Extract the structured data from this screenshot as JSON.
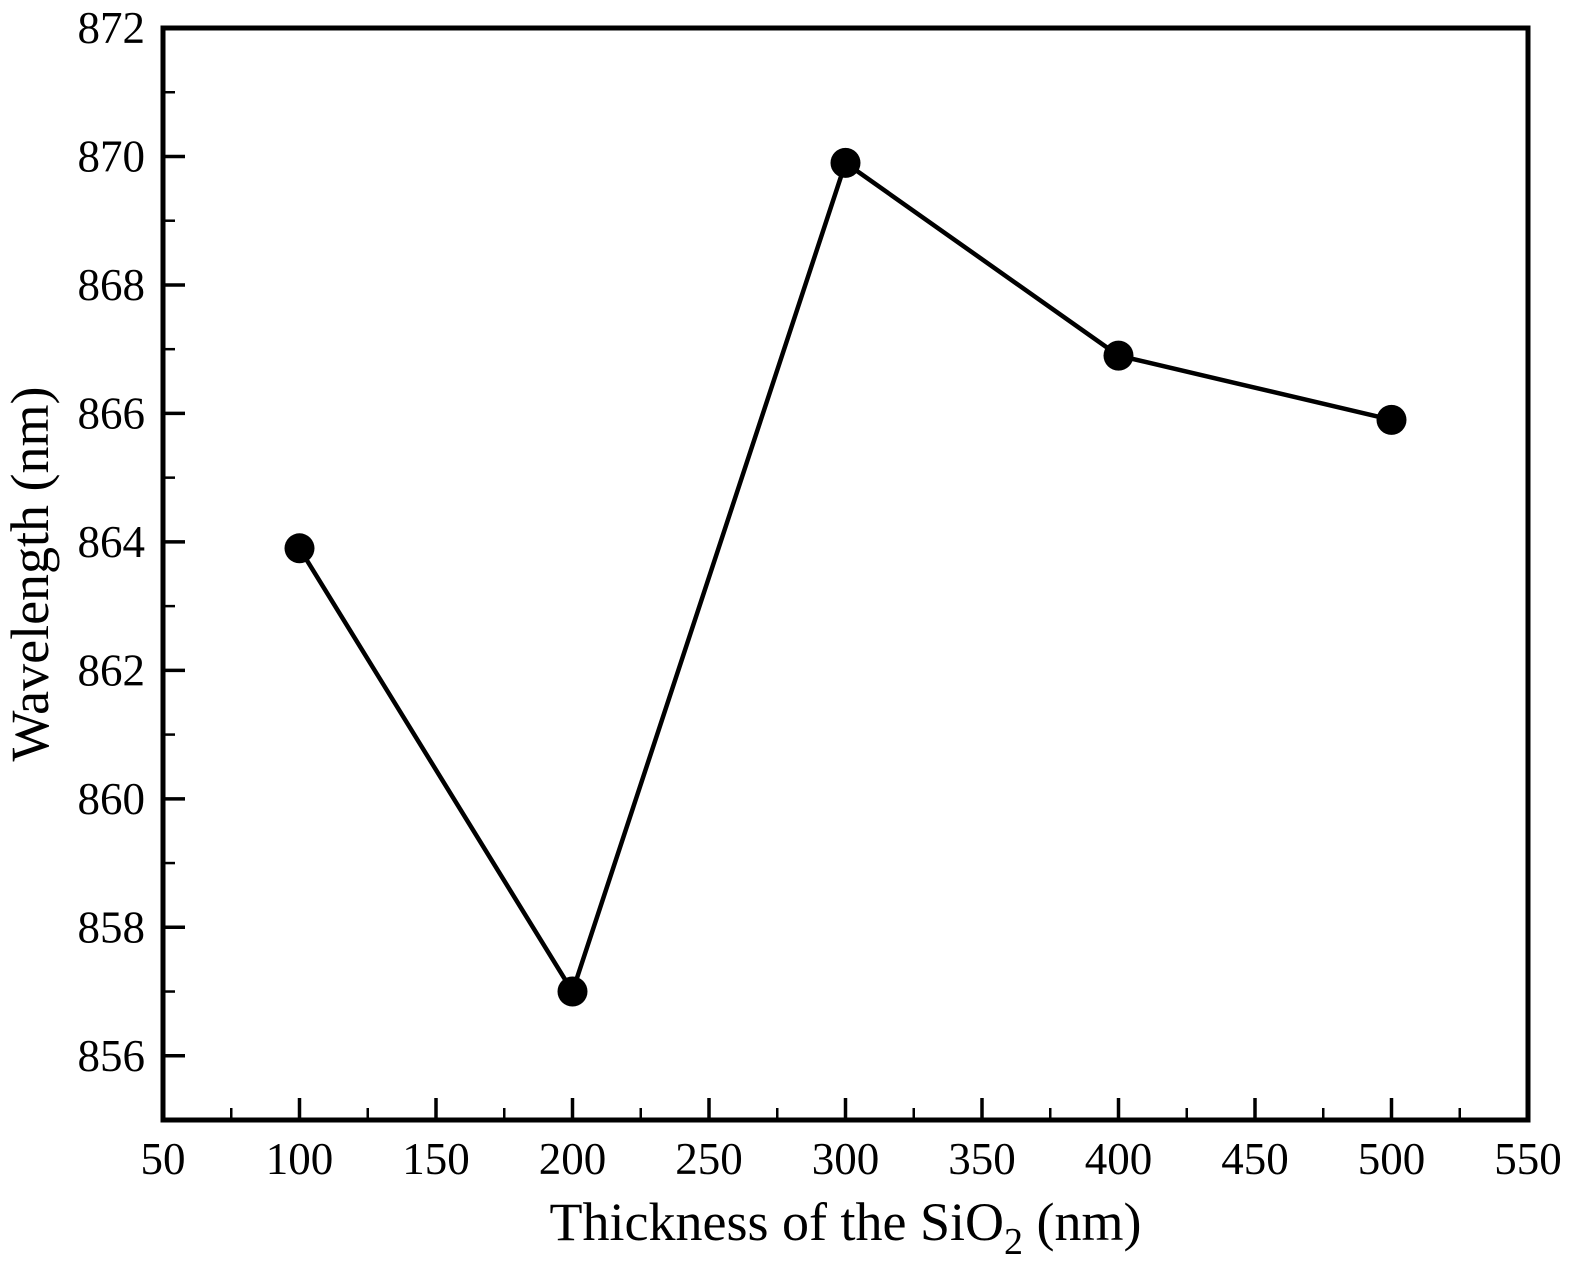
{
  "figure": {
    "background_color": "#ffffff",
    "axis_color": "#000000"
  },
  "chart_data": {
    "type": "line",
    "title": "",
    "xlabel": "Thickness of the SiO2 (nm)",
    "xlabel_parts": [
      {
        "text": "Thickness of the SiO",
        "sub": false
      },
      {
        "text": "2",
        "sub": true
      },
      {
        "text": " (nm)",
        "sub": false
      }
    ],
    "ylabel": "Wavelength (nm)",
    "x": [
      100,
      200,
      300,
      400,
      500
    ],
    "y": [
      863.9,
      857.0,
      869.9,
      866.9,
      865.9
    ],
    "series_name": "Wavelength",
    "xlim": [
      50,
      550
    ],
    "ylim": [
      855,
      872
    ],
    "xticks": [
      50,
      100,
      150,
      200,
      250,
      300,
      350,
      400,
      450,
      500,
      550
    ],
    "yticks": [
      856,
      858,
      860,
      862,
      864,
      866,
      868,
      870,
      872
    ],
    "x_minor_step": 25,
    "y_minor_step": 1,
    "grid": false,
    "legend": "none",
    "line_color": "#000000",
    "marker": "filled-circle",
    "marker_color": "#000000",
    "axis_color": "#000000"
  }
}
